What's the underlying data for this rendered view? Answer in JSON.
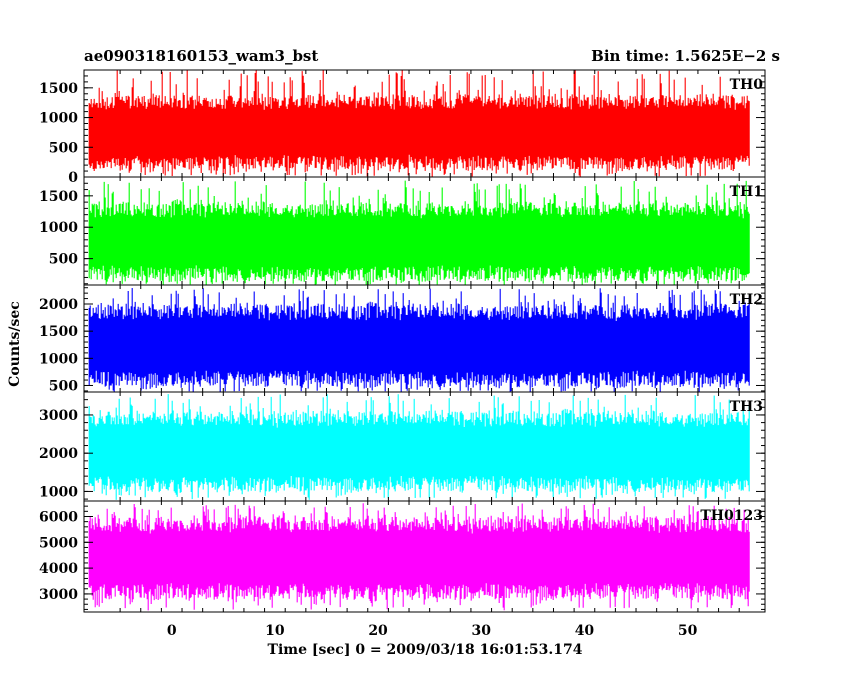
{
  "header": {
    "left": "ae090318160153_wam3_bst",
    "right": "Bin time: 1.5625E−2 s"
  },
  "chart_data": {
    "type": "line",
    "xlabel": "Time [sec] 0 = 2009/03/18 16:01:53.174",
    "ylabel": "Counts/sec",
    "xlim": [
      -8.5,
      57.5
    ],
    "xticks": [
      0,
      10,
      20,
      30,
      40,
      50
    ],
    "x_range_data": [
      -8,
      56
    ],
    "panels": [
      {
        "name": "TH0",
        "color": "#ff0000",
        "ylim": [
          0,
          1800
        ],
        "yticks": [
          0,
          500,
          1000,
          1500
        ],
        "baseline": 750,
        "envelope": [
          120,
          1380
        ],
        "spikes": [
          0,
          1800
        ]
      },
      {
        "name": "TH1",
        "color": "#00ff00",
        "ylim": [
          80,
          1800
        ],
        "yticks": [
          500,
          1000,
          1500
        ],
        "baseline": 750,
        "envelope": [
          150,
          1400
        ],
        "spikes": [
          80,
          1750
        ]
      },
      {
        "name": "TH2",
        "color": "#0000ff",
        "ylim": [
          380,
          2350
        ],
        "yticks": [
          500,
          1000,
          1500,
          2000
        ],
        "baseline": 1200,
        "envelope": [
          480,
          2000
        ],
        "spikes": [
          380,
          2300
        ]
      },
      {
        "name": "TH3",
        "color": "#00ffff",
        "ylim": [
          750,
          3600
        ],
        "yticks": [
          1000,
          2000,
          3000
        ],
        "baseline": 2050,
        "envelope": [
          1000,
          3100
        ],
        "spikes": [
          800,
          3550
        ]
      },
      {
        "name": "TH0123",
        "color": "#ff00ff",
        "ylim": [
          2300,
          6600
        ],
        "yticks": [
          3000,
          4000,
          5000,
          6000
        ],
        "baseline": 4400,
        "envelope": [
          2800,
          6000
        ],
        "spikes": [
          2400,
          6500
        ]
      }
    ],
    "legend": "none",
    "grid": false
  }
}
